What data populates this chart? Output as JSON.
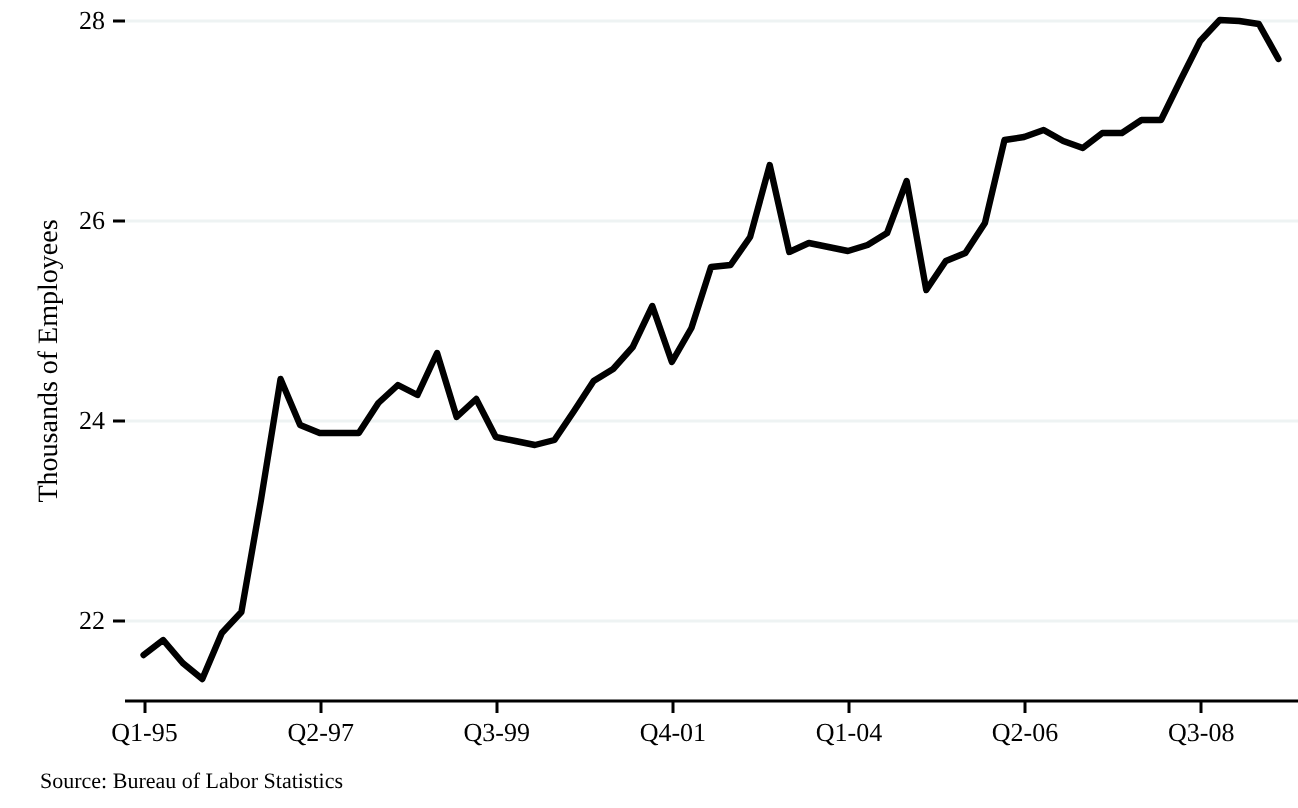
{
  "chart_data": {
    "type": "line",
    "ylabel": "Thousands of Employees",
    "annotations": [
      "Source: Bureau of Labor Statistics"
    ],
    "categories": [
      "Q1-95",
      null,
      null,
      null,
      null,
      null,
      null,
      null,
      null,
      "Q2-97",
      null,
      null,
      null,
      null,
      null,
      null,
      null,
      null,
      "Q3-99",
      null,
      null,
      null,
      null,
      null,
      null,
      null,
      null,
      "Q4-01",
      null,
      null,
      null,
      null,
      null,
      null,
      null,
      null,
      "Q1-04",
      null,
      null,
      null,
      null,
      null,
      null,
      null,
      null,
      "Q2-06",
      null,
      null,
      null,
      null,
      null,
      null,
      null,
      null,
      "Q3-08",
      null,
      null,
      null,
      null
    ],
    "series": [
      {
        "color": "#000000",
        "values": [
          21.65,
          21.8,
          21.57,
          21.41,
          21.87,
          22.08,
          23.2,
          24.41,
          23.95,
          23.87,
          23.87,
          23.87,
          24.17,
          24.35,
          24.25,
          24.67,
          24.03,
          24.21,
          23.83,
          23.79,
          23.75,
          23.8,
          24.09,
          24.39,
          24.51,
          24.73,
          25.14,
          24.58,
          24.92,
          25.53,
          25.55,
          25.83,
          26.55,
          25.68,
          25.77,
          25.73,
          25.69,
          25.75,
          25.87,
          26.39,
          25.3,
          25.59,
          25.67,
          25.97,
          26.8,
          26.83,
          26.9,
          26.79,
          26.72,
          26.87,
          26.87,
          27.0,
          27.0,
          27.4,
          27.79,
          28.0,
          27.99,
          27.96,
          27.61
        ]
      }
    ],
    "ylim": [
      21.2,
      28
    ],
    "yticks": [
      22,
      24,
      26,
      28
    ],
    "grid": "y"
  }
}
